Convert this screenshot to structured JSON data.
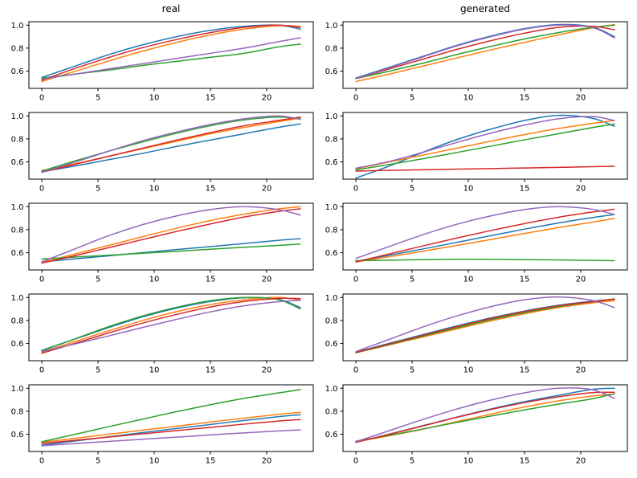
{
  "figure": {
    "background": "#ffffff",
    "columns": [
      {
        "title": "real"
      },
      {
        "title": "generated"
      }
    ]
  },
  "axes": {
    "xlim": [
      -1.15,
      24.15
    ],
    "ylim": [
      0.45,
      1.03
    ],
    "x_ticks": [
      {
        "value": 0,
        "label": "0"
      },
      {
        "value": 5,
        "label": "5"
      },
      {
        "value": 10,
        "label": "10"
      },
      {
        "value": 15,
        "label": "15"
      },
      {
        "value": 20,
        "label": "20"
      }
    ],
    "y_ticks": [
      {
        "value": 0.6,
        "label": "0.6"
      },
      {
        "value": 0.8,
        "label": "0.8"
      },
      {
        "value": 1.0,
        "label": "1.0"
      }
    ],
    "spine_color": "#000000",
    "grid": false,
    "legend": "none"
  },
  "colors": {
    "blue": "#1f77b4",
    "orange": "#ff7f0e",
    "green": "#2ca02c",
    "red": "#d62728",
    "purple": "#9467bd"
  },
  "chart_data": [
    {
      "type": "line",
      "row": 1,
      "column": "real",
      "title": "real",
      "x": [
        0,
        3,
        6,
        9,
        12,
        15,
        18,
        21,
        23
      ],
      "series": [
        {
          "name": "blue",
          "values": [
            0.545,
            0.645,
            0.745,
            0.83,
            0.9,
            0.955,
            0.99,
            1.0,
            0.965
          ]
        },
        {
          "name": "orange",
          "values": [
            0.51,
            0.6,
            0.69,
            0.775,
            0.85,
            0.915,
            0.965,
            0.995,
            0.99
          ]
        },
        {
          "name": "green",
          "values": [
            0.54,
            0.575,
            0.61,
            0.65,
            0.685,
            0.72,
            0.755,
            0.81,
            0.835
          ]
        },
        {
          "name": "red",
          "values": [
            0.52,
            0.625,
            0.72,
            0.805,
            0.875,
            0.935,
            0.98,
            1.0,
            0.98
          ]
        },
        {
          "name": "purple",
          "values": [
            0.53,
            0.575,
            0.62,
            0.665,
            0.71,
            0.755,
            0.8,
            0.855,
            0.89
          ]
        }
      ]
    },
    {
      "type": "line",
      "row": 1,
      "column": "generated",
      "title": "generated",
      "x": [
        0,
        3,
        6,
        9,
        12,
        15,
        18,
        21,
        23
      ],
      "series": [
        {
          "name": "blue",
          "values": [
            0.54,
            0.635,
            0.73,
            0.825,
            0.905,
            0.97,
            1.005,
            0.985,
            0.9
          ]
        },
        {
          "name": "orange",
          "values": [
            0.51,
            0.575,
            0.645,
            0.715,
            0.785,
            0.85,
            0.915,
            0.975,
            1.005
          ]
        },
        {
          "name": "green",
          "values": [
            0.535,
            0.6,
            0.67,
            0.745,
            0.815,
            0.88,
            0.935,
            0.98,
            1.0
          ]
        },
        {
          "name": "red",
          "values": [
            0.535,
            0.62,
            0.705,
            0.79,
            0.865,
            0.93,
            0.98,
            0.99,
            0.96
          ]
        },
        {
          "name": "purple",
          "values": [
            0.535,
            0.63,
            0.725,
            0.82,
            0.9,
            0.965,
            1.0,
            0.98,
            0.89
          ]
        }
      ]
    },
    {
      "type": "line",
      "row": 2,
      "column": "real",
      "title": "",
      "x": [
        0,
        3,
        6,
        9,
        12,
        15,
        18,
        21,
        23
      ],
      "series": [
        {
          "name": "blue",
          "values": [
            0.515,
            0.565,
            0.62,
            0.675,
            0.735,
            0.79,
            0.845,
            0.9,
            0.93
          ]
        },
        {
          "name": "orange",
          "values": [
            0.525,
            0.585,
            0.65,
            0.715,
            0.78,
            0.845,
            0.9,
            0.95,
            0.98
          ]
        },
        {
          "name": "green",
          "values": [
            0.52,
            0.61,
            0.695,
            0.775,
            0.85,
            0.915,
            0.965,
            0.99,
            0.975
          ]
        },
        {
          "name": "red",
          "values": [
            0.51,
            0.58,
            0.65,
            0.72,
            0.79,
            0.855,
            0.915,
            0.96,
            0.99
          ]
        },
        {
          "name": "purple",
          "values": [
            0.51,
            0.6,
            0.695,
            0.785,
            0.86,
            0.925,
            0.975,
            1.0,
            0.97
          ]
        }
      ]
    },
    {
      "type": "line",
      "row": 2,
      "column": "generated",
      "title": "",
      "x": [
        0,
        3,
        6,
        9,
        12,
        15,
        18,
        21,
        23
      ],
      "series": [
        {
          "name": "blue",
          "values": [
            0.46,
            0.565,
            0.685,
            0.795,
            0.885,
            0.96,
            1.005,
            0.98,
            0.91
          ]
        },
        {
          "name": "orange",
          "values": [
            0.54,
            0.6,
            0.66,
            0.72,
            0.78,
            0.838,
            0.89,
            0.935,
            0.96
          ]
        },
        {
          "name": "green",
          "values": [
            0.53,
            0.578,
            0.628,
            0.682,
            0.737,
            0.792,
            0.845,
            0.898,
            0.93
          ]
        },
        {
          "name": "red",
          "values": [
            0.52,
            0.527,
            0.532,
            0.537,
            0.542,
            0.547,
            0.552,
            0.558,
            0.562
          ]
        },
        {
          "name": "purple",
          "values": [
            0.545,
            0.605,
            0.685,
            0.77,
            0.85,
            0.92,
            0.975,
            0.995,
            0.96
          ]
        }
      ]
    },
    {
      "type": "line",
      "row": 3,
      "column": "real",
      "title": "",
      "x": [
        0,
        3,
        6,
        9,
        12,
        15,
        18,
        21,
        23
      ],
      "series": [
        {
          "name": "blue",
          "values": [
            0.52,
            0.547,
            0.573,
            0.6,
            0.627,
            0.653,
            0.68,
            0.707,
            0.722
          ]
        },
        {
          "name": "orange",
          "values": [
            0.515,
            0.59,
            0.665,
            0.74,
            0.813,
            0.88,
            0.935,
            0.98,
            1.0
          ]
        },
        {
          "name": "green",
          "values": [
            0.545,
            0.562,
            0.578,
            0.595,
            0.612,
            0.63,
            0.647,
            0.663,
            0.675
          ]
        },
        {
          "name": "red",
          "values": [
            0.51,
            0.575,
            0.645,
            0.715,
            0.785,
            0.85,
            0.91,
            0.958,
            0.982
          ]
        },
        {
          "name": "purple",
          "values": [
            0.52,
            0.635,
            0.75,
            0.845,
            0.92,
            0.975,
            1.0,
            0.975,
            0.928
          ]
        }
      ]
    },
    {
      "type": "line",
      "row": 3,
      "column": "generated",
      "title": "",
      "x": [
        0,
        3,
        6,
        9,
        12,
        15,
        18,
        21,
        23
      ],
      "series": [
        {
          "name": "blue",
          "values": [
            0.525,
            0.578,
            0.633,
            0.69,
            0.748,
            0.805,
            0.858,
            0.905,
            0.932
          ]
        },
        {
          "name": "orange",
          "values": [
            0.52,
            0.565,
            0.613,
            0.663,
            0.715,
            0.767,
            0.818,
            0.865,
            0.898
          ]
        },
        {
          "name": "green",
          "values": [
            0.53,
            0.535,
            0.54,
            0.543,
            0.542,
            0.54,
            0.537,
            0.533,
            0.53
          ]
        },
        {
          "name": "red",
          "values": [
            0.52,
            0.59,
            0.66,
            0.728,
            0.793,
            0.853,
            0.908,
            0.953,
            0.978
          ]
        },
        {
          "name": "purple",
          "values": [
            0.55,
            0.655,
            0.758,
            0.848,
            0.92,
            0.975,
            1.0,
            0.978,
            0.932
          ]
        }
      ]
    },
    {
      "type": "line",
      "row": 4,
      "column": "real",
      "title": "",
      "x": [
        0,
        3,
        6,
        9,
        12,
        15,
        18,
        21,
        23
      ],
      "series": [
        {
          "name": "blue",
          "values": [
            0.54,
            0.64,
            0.74,
            0.832,
            0.908,
            0.965,
            0.998,
            0.985,
            0.912
          ]
        },
        {
          "name": "orange",
          "values": [
            0.525,
            0.618,
            0.712,
            0.8,
            0.877,
            0.938,
            0.98,
            1.0,
            0.978
          ]
        },
        {
          "name": "green",
          "values": [
            0.535,
            0.642,
            0.748,
            0.84,
            0.915,
            0.972,
            1.0,
            0.982,
            0.9
          ]
        },
        {
          "name": "red",
          "values": [
            0.515,
            0.603,
            0.693,
            0.778,
            0.853,
            0.917,
            0.965,
            0.992,
            0.99
          ]
        },
        {
          "name": "purple",
          "values": [
            0.53,
            0.597,
            0.667,
            0.74,
            0.81,
            0.875,
            0.928,
            0.963,
            0.975
          ]
        }
      ]
    },
    {
      "type": "line",
      "row": 4,
      "column": "generated",
      "title": "",
      "x": [
        0,
        3,
        6,
        9,
        12,
        15,
        18,
        21,
        23
      ],
      "series": [
        {
          "name": "blue",
          "values": [
            0.525,
            0.602,
            0.678,
            0.753,
            0.822,
            0.882,
            0.932,
            0.968,
            0.985
          ]
        },
        {
          "name": "orange",
          "values": [
            0.52,
            0.588,
            0.657,
            0.727,
            0.796,
            0.858,
            0.912,
            0.952,
            0.972
          ]
        },
        {
          "name": "green",
          "values": [
            0.52,
            0.592,
            0.665,
            0.737,
            0.807,
            0.868,
            0.92,
            0.962,
            0.988
          ]
        },
        {
          "name": "red",
          "values": [
            0.522,
            0.597,
            0.672,
            0.747,
            0.817,
            0.877,
            0.928,
            0.963,
            0.985
          ]
        },
        {
          "name": "purple",
          "values": [
            0.53,
            0.637,
            0.745,
            0.84,
            0.92,
            0.98,
            1.005,
            0.975,
            0.912
          ]
        }
      ]
    },
    {
      "type": "line",
      "row": 5,
      "column": "real",
      "title": "",
      "x": [
        0,
        3,
        6,
        9,
        12,
        15,
        18,
        21,
        23
      ],
      "series": [
        {
          "name": "blue",
          "values": [
            0.505,
            0.542,
            0.578,
            0.615,
            0.65,
            0.685,
            0.72,
            0.752,
            0.77
          ]
        },
        {
          "name": "orange",
          "values": [
            0.53,
            0.565,
            0.6,
            0.636,
            0.67,
            0.706,
            0.74,
            0.772,
            0.79
          ]
        },
        {
          "name": "green",
          "values": [
            0.535,
            0.6,
            0.667,
            0.732,
            0.797,
            0.857,
            0.912,
            0.958,
            0.988
          ]
        },
        {
          "name": "red",
          "values": [
            0.52,
            0.548,
            0.576,
            0.604,
            0.632,
            0.66,
            0.688,
            0.714,
            0.728
          ]
        },
        {
          "name": "purple",
          "values": [
            0.5,
            0.52,
            0.538,
            0.557,
            0.575,
            0.594,
            0.612,
            0.628,
            0.638
          ]
        }
      ]
    },
    {
      "type": "line",
      "row": 5,
      "column": "generated",
      "title": "",
      "x": [
        0,
        3,
        6,
        9,
        12,
        15,
        18,
        21,
        23
      ],
      "series": [
        {
          "name": "blue",
          "values": [
            0.53,
            0.602,
            0.676,
            0.75,
            0.82,
            0.883,
            0.938,
            0.99,
            1.0
          ]
        },
        {
          "name": "orange",
          "values": [
            0.535,
            0.587,
            0.645,
            0.71,
            0.775,
            0.837,
            0.89,
            0.932,
            0.95
          ]
        },
        {
          "name": "green",
          "values": [
            0.54,
            0.592,
            0.647,
            0.703,
            0.758,
            0.812,
            0.862,
            0.908,
            0.953
          ]
        },
        {
          "name": "red",
          "values": [
            0.53,
            0.6,
            0.673,
            0.748,
            0.815,
            0.875,
            0.925,
            0.962,
            0.965
          ]
        },
        {
          "name": "purple",
          "values": [
            0.535,
            0.632,
            0.73,
            0.82,
            0.897,
            0.96,
            1.0,
            0.988,
            0.912
          ]
        }
      ]
    }
  ]
}
